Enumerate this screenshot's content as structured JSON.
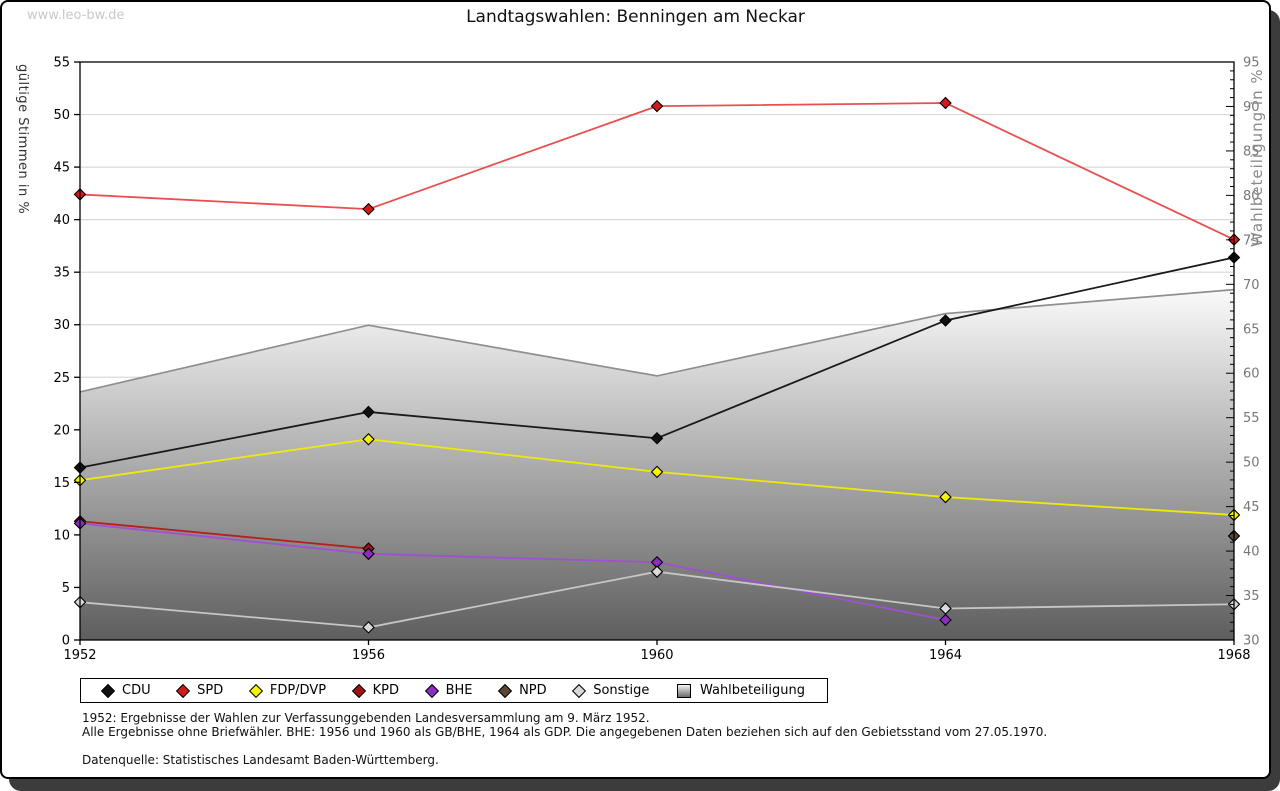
{
  "watermark": "www.leo-bw.de",
  "title": "Landtagswahlen: Benningen am Neckar",
  "chart_data": {
    "type": "line",
    "title": "Landtagswahlen: Benningen am Neckar",
    "categories": [
      "1952",
      "1956",
      "1960",
      "1964",
      "1968"
    ],
    "left_axis": {
      "label": "gültige Stimmen in %",
      "min": 0,
      "max": 55,
      "step": 5
    },
    "right_axis": {
      "label": "Wahlbeteiligung in %",
      "min": 30,
      "max": 95,
      "step": 5,
      "minor_step": 1
    },
    "grid": "horizontal",
    "legend_position": "bottom",
    "series": [
      {
        "name": "CDU",
        "kind": "line",
        "axis": "left",
        "line_color": "#1a1a1a",
        "marker_color": "#111111",
        "values": [
          16.4,
          21.7,
          19.2,
          30.4,
          36.4
        ]
      },
      {
        "name": "SPD",
        "kind": "line",
        "axis": "left",
        "line_color": "#e85050",
        "marker_color": "#d51919",
        "values": [
          42.4,
          41.0,
          50.8,
          51.1,
          38.1
        ]
      },
      {
        "name": "FDP/DVP",
        "kind": "line",
        "axis": "left",
        "line_color": "#efe90a",
        "marker_color": "#f6f200",
        "values": [
          15.2,
          19.1,
          16.0,
          13.6,
          11.9
        ]
      },
      {
        "name": "KPD",
        "kind": "line",
        "axis": "left",
        "line_color": "#b42020",
        "marker_color": "#a31111",
        "values": [
          11.3,
          8.7,
          null,
          null,
          null
        ]
      },
      {
        "name": "BHE",
        "kind": "line",
        "axis": "left",
        "line_color": "#a050d2",
        "marker_color": "#8d2cc0",
        "values": [
          11.1,
          8.2,
          7.4,
          1.9,
          null
        ]
      },
      {
        "name": "NPD",
        "kind": "line",
        "axis": "left",
        "line_color": "#5c4633",
        "marker_color": "#5c4633",
        "values": [
          null,
          null,
          null,
          null,
          9.9
        ]
      },
      {
        "name": "Sonstige",
        "kind": "line",
        "axis": "left",
        "line_color": "#c6c6c6",
        "marker_color": "#d9d9d9",
        "values": [
          3.6,
          1.2,
          6.5,
          3.0,
          3.4
        ]
      },
      {
        "name": "Wahlbeteiligung",
        "kind": "area",
        "axis": "right",
        "line_color": "#8f8f8f",
        "fill_top": "#fafafa",
        "fill_bottom": "#5e5e5e",
        "values": [
          57.9,
          65.4,
          59.7,
          66.7,
          69.4
        ]
      }
    ],
    "colors": {
      "grid": "#d9d9d9",
      "frame": "#000000",
      "right_tick_text": "#777777",
      "left_tick_text": "#000000"
    }
  },
  "footnotes": {
    "line1": "1952: Ergebnisse der Wahlen zur Verfassunggebenden Landesversammlung am 9. März 1952.",
    "line2": "Alle Ergebnisse ohne Briefwähler. BHE: 1956 und 1960 als GB/BHE, 1964 als GDP. Die angegebenen Daten beziehen sich auf den Gebietsstand vom 27.05.1970.",
    "source": "Datenquelle: Statistisches Landesamt Baden-Württemberg."
  }
}
